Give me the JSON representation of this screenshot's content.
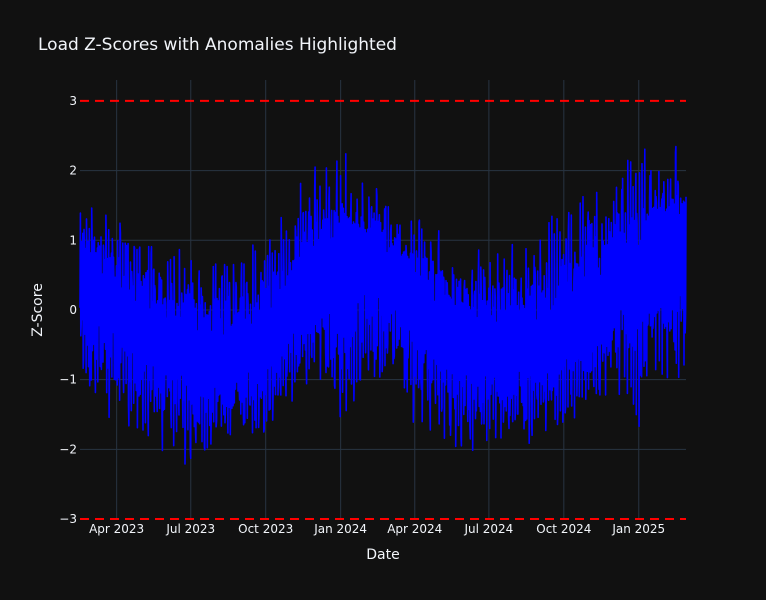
{
  "chart_data": {
    "type": "line",
    "title": "Load Z-Scores with Anomalies Highlighted",
    "xlabel": "Date",
    "ylabel": "Z-Score",
    "x_range": [
      "2023-02-15",
      "2025-02-28"
    ],
    "ylim": [
      -3,
      3.3
    ],
    "y_ticks": [
      -3,
      -2,
      -1,
      0,
      1,
      2,
      3
    ],
    "x_ticks": [
      {
        "date": "2023-04-01",
        "label": "Apr 2023"
      },
      {
        "date": "2023-07-01",
        "label": "Jul 2023"
      },
      {
        "date": "2023-10-01",
        "label": "Oct 2023"
      },
      {
        "date": "2024-01-01",
        "label": "Jan 2024"
      },
      {
        "date": "2024-04-01",
        "label": "Apr 2024"
      },
      {
        "date": "2024-07-01",
        "label": "Jul 2024"
      },
      {
        "date": "2024-10-01",
        "label": "Oct 2024"
      },
      {
        "date": "2025-01-01",
        "label": "Jan 2025"
      }
    ],
    "threshold_lines": [
      3,
      -3
    ],
    "grid": true,
    "series": [
      {
        "color": "#0000ff",
        "envelope": [
          {
            "date": "2023-02-15",
            "max": 1.5,
            "min": -1.0
          },
          {
            "date": "2023-03-01",
            "max": 1.6,
            "min": -1.5
          },
          {
            "date": "2023-04-01",
            "max": 1.4,
            "min": -1.7
          },
          {
            "date": "2023-05-01",
            "max": 1.1,
            "min": -1.9
          },
          {
            "date": "2023-06-01",
            "max": 0.9,
            "min": -2.1
          },
          {
            "date": "2023-07-01",
            "max": 0.85,
            "min": -2.3
          },
          {
            "date": "2023-08-01",
            "max": 0.8,
            "min": -2.1
          },
          {
            "date": "2023-09-01",
            "max": 1.0,
            "min": -2.0
          },
          {
            "date": "2023-10-01",
            "max": 1.2,
            "min": -1.9
          },
          {
            "date": "2023-11-01",
            "max": 1.6,
            "min": -1.5
          },
          {
            "date": "2023-12-01",
            "max": 2.2,
            "min": -1.0
          },
          {
            "date": "2024-01-01",
            "max": 2.4,
            "min": -1.8
          },
          {
            "date": "2024-02-01",
            "max": 2.0,
            "min": -1.2
          },
          {
            "date": "2024-03-01",
            "max": 1.7,
            "min": -1.3
          },
          {
            "date": "2024-04-01",
            "max": 1.5,
            "min": -1.8
          },
          {
            "date": "2024-05-01",
            "max": 1.2,
            "min": -2.0
          },
          {
            "date": "2024-06-01",
            "max": 1.1,
            "min": -2.1
          },
          {
            "date": "2024-07-01",
            "max": 1.0,
            "min": -2.0
          },
          {
            "date": "2024-08-01",
            "max": 1.0,
            "min": -2.0
          },
          {
            "date": "2024-09-01",
            "max": 1.3,
            "min": -1.9
          },
          {
            "date": "2024-10-01",
            "max": 1.5,
            "min": -1.8
          },
          {
            "date": "2024-11-01",
            "max": 1.8,
            "min": -1.6
          },
          {
            "date": "2024-12-01",
            "max": 2.0,
            "min": -1.2
          },
          {
            "date": "2025-01-01",
            "max": 2.3,
            "min": -1.7
          },
          {
            "date": "2025-02-01",
            "max": 2.5,
            "min": -1.5
          },
          {
            "date": "2025-02-28",
            "max": 2.3,
            "min": -1.0
          }
        ],
        "mean_curve": [
          {
            "date": "2023-02-15",
            "value": 0.4
          },
          {
            "date": "2023-04-01",
            "value": 0.0
          },
          {
            "date": "2023-05-15",
            "value": -0.3
          },
          {
            "date": "2023-07-01",
            "value": -0.6
          },
          {
            "date": "2023-08-15",
            "value": -0.7
          },
          {
            "date": "2023-10-01",
            "value": -0.5
          },
          {
            "date": "2023-11-15",
            "value": 0.2
          },
          {
            "date": "2023-12-20",
            "value": 0.5
          },
          {
            "date": "2024-01-01",
            "value": 0.6
          },
          {
            "date": "2024-02-15",
            "value": 0.7
          },
          {
            "date": "2024-04-01",
            "value": 0.2
          },
          {
            "date": "2024-05-15",
            "value": -0.4
          },
          {
            "date": "2024-07-01",
            "value": -0.6
          },
          {
            "date": "2024-08-15",
            "value": -0.6
          },
          {
            "date": "2024-10-01",
            "value": -0.3
          },
          {
            "date": "2024-11-15",
            "value": 0.1
          },
          {
            "date": "2024-12-20",
            "value": 0.6
          },
          {
            "date": "2025-01-01",
            "value": 0.4
          },
          {
            "date": "2025-02-01",
            "value": 0.9
          },
          {
            "date": "2025-02-28",
            "value": 0.8
          }
        ]
      }
    ]
  }
}
